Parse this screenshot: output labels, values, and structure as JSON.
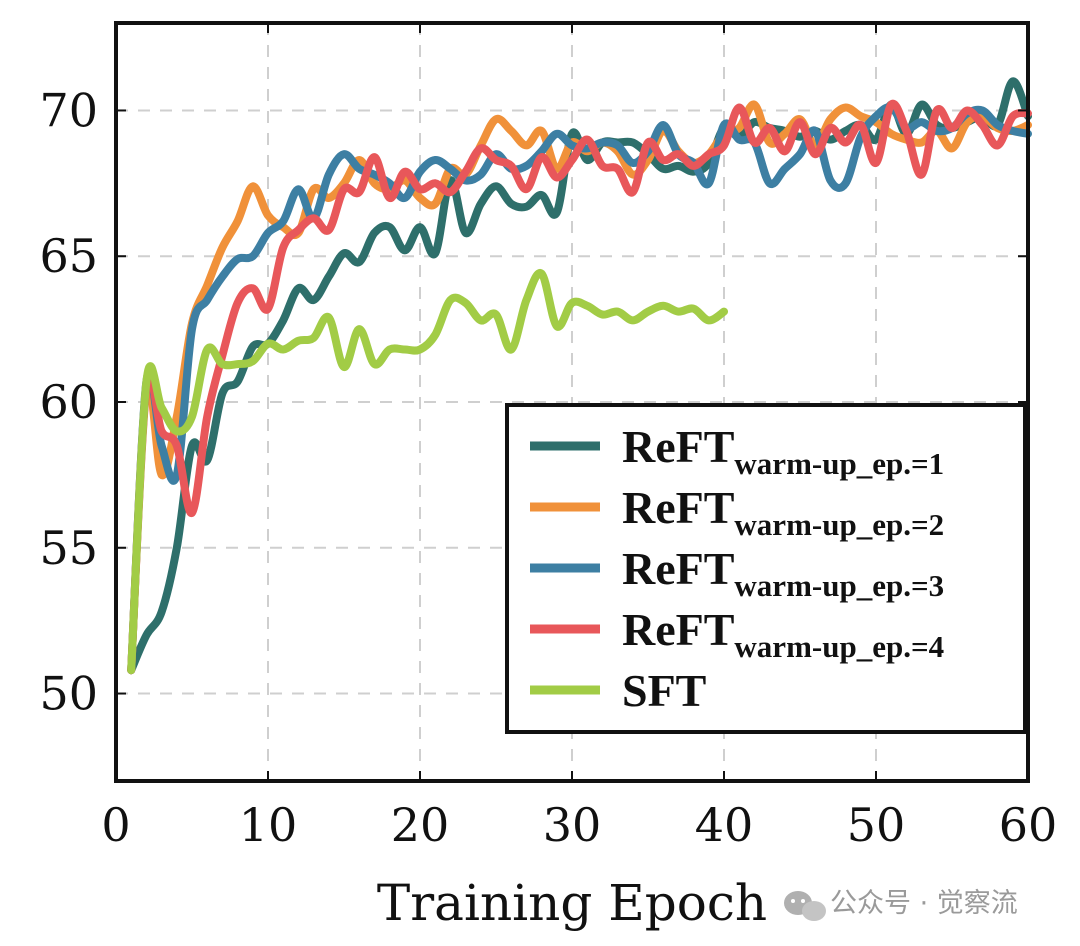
{
  "chart_data": {
    "type": "line",
    "title": "",
    "xlabel": "Training Epoch",
    "ylabel": "",
    "xlim": [
      0,
      60
    ],
    "ylim": [
      47,
      73
    ],
    "xticks": [
      0,
      10,
      20,
      30,
      40,
      50,
      60
    ],
    "yticks": [
      50,
      55,
      60,
      65,
      70
    ],
    "grid": true,
    "legend_position": "bottom-right",
    "series": [
      {
        "name": "ReFT",
        "subscript": "warm-up_ep.=1",
        "color": "#2E6F6B",
        "x": [
          1,
          2,
          3,
          4,
          5,
          6,
          7,
          8,
          9,
          10,
          11,
          12,
          13,
          14,
          15,
          16,
          17,
          18,
          19,
          20,
          21,
          22,
          23,
          24,
          25,
          26,
          27,
          28,
          29,
          30,
          31,
          32,
          33,
          34,
          35,
          36,
          37,
          38,
          39,
          40,
          41,
          42,
          43,
          44,
          45,
          46,
          47,
          48,
          49,
          50,
          51,
          52,
          53,
          54,
          55,
          56,
          57,
          58,
          59,
          60
        ],
        "values": [
          50.8,
          52.0,
          52.8,
          55.0,
          58.5,
          58.0,
          60.3,
          60.7,
          61.9,
          62.0,
          62.8,
          63.9,
          63.5,
          64.3,
          65.1,
          64.8,
          65.8,
          66.0,
          65.2,
          66.0,
          65.1,
          67.6,
          65.8,
          66.8,
          67.4,
          66.8,
          66.7,
          67.1,
          66.5,
          69.2,
          68.3,
          68.9,
          68.9,
          68.9,
          68.5,
          68.0,
          68.1,
          67.9,
          68.2,
          69.4,
          69.1,
          69.6,
          69.4,
          69.3,
          69.1,
          69.3,
          69.0,
          69.3,
          69.5,
          69.0,
          70.2,
          69.2,
          70.2,
          69.5,
          69.4,
          69.6,
          69.8,
          69.5,
          71.0,
          69.8
        ]
      },
      {
        "name": "ReFT",
        "subscript": "warm-up_ep.=2",
        "color": "#F0913A",
        "x": [
          1,
          2,
          3,
          4,
          5,
          6,
          7,
          8,
          9,
          10,
          11,
          12,
          13,
          14,
          15,
          16,
          17,
          18,
          19,
          20,
          21,
          22,
          23,
          24,
          25,
          26,
          27,
          28,
          29,
          30,
          31,
          32,
          33,
          34,
          35,
          36,
          37,
          38,
          39,
          40,
          41,
          42,
          43,
          44,
          45,
          46,
          47,
          48,
          49,
          50,
          51,
          52,
          53,
          54,
          55,
          56,
          57,
          58,
          59,
          60
        ],
        "values": [
          50.8,
          60.5,
          57.5,
          59.5,
          62.7,
          64.0,
          65.3,
          66.2,
          67.4,
          66.4,
          66.0,
          65.8,
          67.3,
          67.0,
          67.5,
          68.3,
          67.5,
          67.3,
          67.6,
          67.0,
          66.8,
          68.0,
          67.8,
          68.8,
          69.7,
          69.3,
          68.8,
          69.3,
          68.0,
          68.9,
          68.6,
          68.9,
          68.6,
          67.8,
          68.3,
          69.3,
          68.6,
          68.2,
          68.5,
          69.2,
          69.4,
          70.2,
          68.9,
          69.2,
          69.7,
          68.8,
          69.7,
          70.1,
          69.8,
          69.6,
          69.2,
          69.0,
          68.9,
          69.3,
          68.7,
          69.6,
          69.8,
          69.4,
          69.3,
          69.5
        ]
      },
      {
        "name": "ReFT",
        "subscript": "warm-up_ep.=3",
        "color": "#3D7FA3",
        "x": [
          1,
          2,
          3,
          4,
          5,
          6,
          7,
          8,
          9,
          10,
          11,
          12,
          13,
          14,
          15,
          16,
          17,
          18,
          19,
          20,
          21,
          22,
          23,
          24,
          25,
          26,
          27,
          28,
          29,
          30,
          31,
          32,
          33,
          34,
          35,
          36,
          37,
          38,
          39,
          40,
          41,
          42,
          43,
          44,
          45,
          46,
          47,
          48,
          49,
          50,
          51,
          52,
          53,
          54,
          55,
          56,
          57,
          58,
          59,
          60
        ],
        "values": [
          50.8,
          60.7,
          58.5,
          57.5,
          62.5,
          63.5,
          64.3,
          64.9,
          65.0,
          65.8,
          66.2,
          67.3,
          66.3,
          67.8,
          68.5,
          68.0,
          67.8,
          67.5,
          67.0,
          67.9,
          68.3,
          68.0,
          67.6,
          67.8,
          68.5,
          68.0,
          68.1,
          68.6,
          69.2,
          68.8,
          68.7,
          68.9,
          68.8,
          68.2,
          68.6,
          69.5,
          68.5,
          68.2,
          67.5,
          69.5,
          69.0,
          68.9,
          67.5,
          68.0,
          68.5,
          69.3,
          67.6,
          67.5,
          69.1,
          69.8,
          70.1,
          69.4,
          69.6,
          69.3,
          69.4,
          69.9,
          70.0,
          69.5,
          69.3,
          69.2
        ]
      },
      {
        "name": "ReFT",
        "subscript": "warm-up_ep.=4",
        "color": "#E8575A",
        "x": [
          1,
          2,
          3,
          4,
          5,
          6,
          7,
          8,
          9,
          10,
          11,
          12,
          13,
          14,
          15,
          16,
          17,
          18,
          19,
          20,
          21,
          22,
          23,
          24,
          25,
          26,
          27,
          28,
          29,
          30,
          31,
          32,
          33,
          34,
          35,
          36,
          37,
          38,
          39,
          40,
          41,
          42,
          43,
          44,
          45,
          46,
          47,
          48,
          49,
          50,
          51,
          52,
          53,
          54,
          55,
          56,
          57,
          58,
          59,
          60
        ],
        "values": [
          50.8,
          60.5,
          59.0,
          58.5,
          56.2,
          59.5,
          61.6,
          63.4,
          63.9,
          63.2,
          65.3,
          65.9,
          66.3,
          65.9,
          67.3,
          67.2,
          68.4,
          67.0,
          67.9,
          67.3,
          67.5,
          67.2,
          67.9,
          68.7,
          68.3,
          68.1,
          67.3,
          68.4,
          67.7,
          68.3,
          69.0,
          68.1,
          68.0,
          67.2,
          68.9,
          68.3,
          68.5,
          68.1,
          68.5,
          68.8,
          70.1,
          68.9,
          69.4,
          68.6,
          69.6,
          68.5,
          69.4,
          68.9,
          69.5,
          68.2,
          70.2,
          69.3,
          67.8,
          70.0,
          69.4,
          70.0,
          69.5,
          68.8,
          69.8,
          69.9
        ]
      },
      {
        "name": "SFT",
        "subscript": "",
        "color": "#A2CC46",
        "x": [
          1,
          2,
          3,
          4,
          5,
          6,
          7,
          8,
          9,
          10,
          11,
          12,
          13,
          14,
          15,
          16,
          17,
          18,
          19,
          20,
          21,
          22,
          23,
          24,
          25,
          26,
          27,
          28,
          29,
          30,
          31,
          32,
          33,
          34,
          35,
          36,
          37,
          38,
          39,
          40
        ],
        "values": [
          50.8,
          60.7,
          59.8,
          59.0,
          59.5,
          61.8,
          61.3,
          61.3,
          61.4,
          62.0,
          61.8,
          62.1,
          62.2,
          62.9,
          61.2,
          62.5,
          61.3,
          61.8,
          61.8,
          61.8,
          62.3,
          63.5,
          63.4,
          62.8,
          63.0,
          61.8,
          63.5,
          64.4,
          62.6,
          63.4,
          63.3,
          63.0,
          63.1,
          62.8,
          63.1,
          63.3,
          63.1,
          63.2,
          62.8,
          63.1
        ]
      }
    ]
  },
  "watermark": {
    "text": "公众号 · 觉察流",
    "icon": "wechat-icon"
  }
}
